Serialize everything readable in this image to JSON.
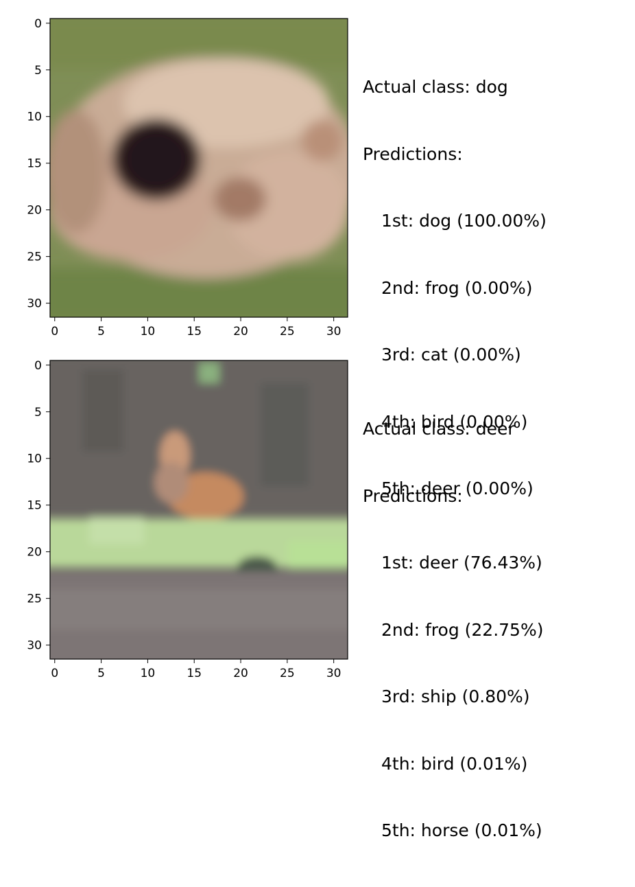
{
  "panels": [
    {
      "image_alt": "blurry 32x32 image of a dog face on green grass",
      "actual_label": "Actual class: dog",
      "predictions_label": "Predictions:",
      "predictions": [
        "1st: dog (100.00%)",
        "2nd: frog (0.00%)",
        "3rd: cat (0.00%)",
        "4th: bird (0.00%)",
        "5th: deer (0.00%)"
      ],
      "x_ticks": [
        "0",
        "5",
        "10",
        "15",
        "20",
        "25",
        "30"
      ],
      "y_ticks": [
        "0",
        "5",
        "10",
        "15",
        "20",
        "25",
        "30"
      ]
    },
    {
      "image_alt": "blurry 32x32 image of a deer in grass",
      "actual_label": "Actual class: deer",
      "predictions_label": "Predictions:",
      "predictions": [
        "1st: deer (76.43%)",
        "2nd: frog (22.75%)",
        "3rd: ship (0.80%)",
        "4th: bird (0.01%)",
        "5th: horse (0.01%)"
      ],
      "x_ticks": [
        "0",
        "5",
        "10",
        "15",
        "20",
        "25",
        "30"
      ],
      "y_ticks": [
        "0",
        "5",
        "10",
        "15",
        "20",
        "25",
        "30"
      ]
    }
  ]
}
